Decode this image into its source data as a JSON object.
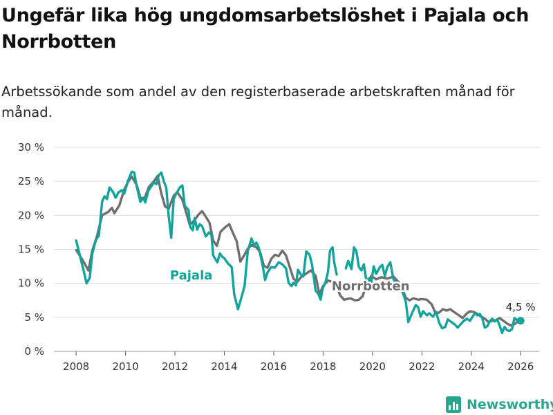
{
  "title": "Ungefär lika hög ungdomsarbetslöshet i Pajala och Norrbotten",
  "subtitle": "Arbetssökande som andel av den registerbaserade arbetskraften månad för månad.",
  "brand": {
    "name": "Newsworthy",
    "icon": "bar-chart-logo-icon"
  },
  "colors": {
    "pajala": "#12a39a",
    "norrbotten": "#6e6e6e",
    "grid": "#dcdcdc",
    "brand": "#2ca58d"
  },
  "chart_data": {
    "type": "line",
    "title": "Ungefär lika hög ungdomsarbetslöshet i Pajala och Norrbotten",
    "xlabel": "",
    "ylabel": "",
    "xlim": [
      2007.1,
      2026.75
    ],
    "ylim": [
      0,
      30
    ],
    "grid": true,
    "y_ticks": [
      0,
      5,
      10,
      15,
      20,
      25,
      30
    ],
    "y_tick_labels": [
      "0 %",
      "5 %",
      "10 %",
      "15 %",
      "20 %",
      "25 %",
      "30 %"
    ],
    "x_ticks": [
      2008,
      2010,
      2012,
      2014,
      2016,
      2018,
      2020,
      2022,
      2024,
      2026
    ],
    "x_tick_labels": [
      "2008",
      "2010",
      "2012",
      "2014",
      "2016",
      "2018",
      "2020",
      "2022",
      "2024",
      "2026"
    ],
    "end_label": "4,5 %",
    "series": [
      {
        "name": "Norrbotten",
        "label": "Norrbotten",
        "points": [
          [
            2008.0,
            14.9
          ],
          [
            2008.25,
            13.5
          ],
          [
            2008.5,
            11.9
          ],
          [
            2008.65,
            14.8
          ],
          [
            2008.85,
            17.0
          ],
          [
            2009.05,
            20.0
          ],
          [
            2009.3,
            20.5
          ],
          [
            2009.45,
            21.1
          ],
          [
            2009.55,
            20.3
          ],
          [
            2009.75,
            21.5
          ],
          [
            2009.95,
            23.8
          ],
          [
            2010.1,
            24.9
          ],
          [
            2010.25,
            25.7
          ],
          [
            2010.45,
            24.5
          ],
          [
            2010.6,
            22.6
          ],
          [
            2010.75,
            22.3
          ],
          [
            2010.95,
            24.2
          ],
          [
            2011.15,
            25.0
          ],
          [
            2011.3,
            25.8
          ],
          [
            2011.45,
            23.2
          ],
          [
            2011.6,
            21.3
          ],
          [
            2011.75,
            21.0
          ],
          [
            2011.95,
            22.9
          ],
          [
            2012.1,
            23.4
          ],
          [
            2012.3,
            22.3
          ],
          [
            2012.45,
            20.5
          ],
          [
            2012.6,
            18.6
          ],
          [
            2012.8,
            19.3
          ],
          [
            2012.95,
            20.1
          ],
          [
            2013.1,
            20.6
          ],
          [
            2013.25,
            19.8
          ],
          [
            2013.4,
            18.9
          ],
          [
            2013.55,
            16.3
          ],
          [
            2013.7,
            15.5
          ],
          [
            2013.85,
            17.6
          ],
          [
            2014.05,
            18.3
          ],
          [
            2014.2,
            18.7
          ],
          [
            2014.35,
            17.4
          ],
          [
            2014.5,
            16.2
          ],
          [
            2014.65,
            13.2
          ],
          [
            2014.8,
            14.1
          ],
          [
            2014.95,
            15.1
          ],
          [
            2015.1,
            15.6
          ],
          [
            2015.3,
            15.3
          ],
          [
            2015.45,
            14.6
          ],
          [
            2015.6,
            12.6
          ],
          [
            2015.75,
            12.3
          ],
          [
            2015.9,
            13.6
          ],
          [
            2016.05,
            14.2
          ],
          [
            2016.2,
            14.0
          ],
          [
            2016.35,
            14.8
          ],
          [
            2016.5,
            14.1
          ],
          [
            2016.65,
            12.4
          ],
          [
            2016.8,
            10.7
          ],
          [
            2016.95,
            10.2
          ],
          [
            2017.1,
            10.9
          ],
          [
            2017.3,
            11.4
          ],
          [
            2017.5,
            11.9
          ],
          [
            2017.7,
            11.1
          ],
          [
            2017.85,
            8.4
          ],
          [
            2018.0,
            9.6
          ],
          [
            2018.2,
            10.4
          ],
          [
            2018.4,
            10.2
          ],
          [
            2018.55,
            9.5
          ],
          [
            2018.7,
            8.2
          ],
          [
            2018.85,
            7.6
          ]
        ]
      },
      {
        "name": "Norrbotten",
        "label": "",
        "points": [
          [
            2019.6,
            8.1
          ],
          [
            2019.75,
            9.8
          ],
          [
            2019.95,
            11.1
          ],
          [
            2020.15,
            10.6
          ],
          [
            2020.35,
            10.9
          ],
          [
            2020.6,
            10.7
          ],
          [
            2020.85,
            11.0
          ],
          [
            2021.05,
            10.2
          ],
          [
            2021.2,
            9.2
          ],
          [
            2021.35,
            7.9
          ],
          [
            2021.5,
            7.5
          ],
          [
            2021.65,
            7.8
          ],
          [
            2021.85,
            7.6
          ],
          [
            2022.0,
            7.7
          ],
          [
            2022.2,
            7.6
          ],
          [
            2022.4,
            6.9
          ],
          [
            2022.55,
            5.6
          ],
          [
            2022.7,
            5.7
          ],
          [
            2022.85,
            6.2
          ],
          [
            2023.0,
            6.0
          ],
          [
            2023.15,
            6.2
          ],
          [
            2023.3,
            5.8
          ],
          [
            2023.5,
            5.3
          ],
          [
            2023.65,
            4.9
          ],
          [
            2023.8,
            5.5
          ],
          [
            2023.95,
            5.9
          ],
          [
            2024.1,
            5.8
          ],
          [
            2024.25,
            5.5
          ],
          [
            2024.4,
            5.1
          ],
          [
            2024.55,
            4.8
          ],
          [
            2024.7,
            4.3
          ],
          [
            2024.85,
            4.5
          ],
          [
            2025.0,
            4.6
          ],
          [
            2025.15,
            4.9
          ],
          [
            2025.3,
            4.5
          ],
          [
            2025.45,
            4.1
          ],
          [
            2025.6,
            3.8
          ],
          [
            2025.75,
            4.0
          ],
          [
            2025.9,
            4.4
          ],
          [
            2026.0,
            4.5
          ]
        ]
      },
      {
        "name": "Norrbotten",
        "label": "",
        "points": [
          [
            2018.85,
            7.6
          ],
          [
            2019.1,
            7.8
          ],
          [
            2019.3,
            7.5
          ],
          [
            2019.45,
            7.6
          ],
          [
            2019.6,
            8.1
          ]
        ]
      },
      {
        "name": "Pajala",
        "label": "Pajala",
        "points": [
          [
            2008.0,
            16.3
          ],
          [
            2008.15,
            14.1
          ],
          [
            2008.3,
            11.9
          ],
          [
            2008.42,
            10.0
          ],
          [
            2008.55,
            10.8
          ],
          [
            2008.65,
            14.3
          ],
          [
            2008.8,
            16.4
          ],
          [
            2008.92,
            17.0
          ],
          [
            2009.05,
            22.0
          ],
          [
            2009.15,
            22.8
          ],
          [
            2009.25,
            22.4
          ],
          [
            2009.35,
            24.1
          ],
          [
            2009.5,
            23.4
          ],
          [
            2009.6,
            22.6
          ],
          [
            2009.72,
            23.4
          ],
          [
            2009.85,
            23.7
          ],
          [
            2009.95,
            23.2
          ],
          [
            2010.1,
            25.1
          ],
          [
            2010.25,
            26.4
          ],
          [
            2010.35,
            26.3
          ],
          [
            2010.45,
            24.3
          ],
          [
            2010.6,
            22.0
          ],
          [
            2010.72,
            22.6
          ],
          [
            2010.8,
            21.9
          ],
          [
            2010.92,
            23.6
          ],
          [
            2011.05,
            24.3
          ],
          [
            2011.15,
            24.8
          ],
          [
            2011.25,
            24.6
          ],
          [
            2011.35,
            25.9
          ],
          [
            2011.45,
            26.3
          ],
          [
            2011.55,
            25.0
          ],
          [
            2011.65,
            24.1
          ],
          [
            2011.75,
            19.8
          ],
          [
            2011.85,
            16.7
          ],
          [
            2011.95,
            22.4
          ],
          [
            2012.05,
            23.2
          ],
          [
            2012.2,
            24.1
          ],
          [
            2012.3,
            24.4
          ],
          [
            2012.4,
            21.4
          ],
          [
            2012.55,
            20.8
          ],
          [
            2012.62,
            18.3
          ],
          [
            2012.72,
            17.8
          ],
          [
            2012.8,
            19.6
          ],
          [
            2012.9,
            17.9
          ],
          [
            2013.0,
            18.7
          ],
          [
            2013.1,
            18.4
          ],
          [
            2013.25,
            16.9
          ],
          [
            2013.38,
            17.5
          ],
          [
            2013.48,
            17.1
          ],
          [
            2013.55,
            14.1
          ],
          [
            2013.65,
            13.5
          ],
          [
            2013.72,
            13.1
          ],
          [
            2013.82,
            14.4
          ],
          [
            2013.92,
            13.9
          ],
          [
            2014.0,
            13.7
          ],
          [
            2014.15,
            12.9
          ],
          [
            2014.3,
            12.4
          ],
          [
            2014.4,
            8.4
          ],
          [
            2014.55,
            6.2
          ],
          [
            2014.7,
            8.0
          ],
          [
            2014.82,
            9.6
          ],
          [
            2014.95,
            14.7
          ],
          [
            2015.1,
            16.6
          ],
          [
            2015.2,
            15.6
          ],
          [
            2015.3,
            16.0
          ],
          [
            2015.4,
            15.2
          ],
          [
            2015.55,
            12.7
          ],
          [
            2015.65,
            10.5
          ],
          [
            2015.75,
            11.6
          ],
          [
            2015.9,
            12.4
          ],
          [
            2016.05,
            12.3
          ],
          [
            2016.2,
            13.1
          ],
          [
            2016.35,
            12.8
          ],
          [
            2016.5,
            12.2
          ],
          [
            2016.6,
            10.1
          ],
          [
            2016.72,
            9.6
          ],
          [
            2016.8,
            10.1
          ],
          [
            2016.9,
            9.7
          ],
          [
            2016.98,
            12.0
          ],
          [
            2017.1,
            11.3
          ],
          [
            2017.2,
            11.0
          ],
          [
            2017.32,
            14.7
          ],
          [
            2017.45,
            14.2
          ],
          [
            2017.55,
            12.8
          ],
          [
            2017.7,
            8.9
          ],
          [
            2017.8,
            8.5
          ],
          [
            2017.9,
            7.6
          ],
          [
            2017.98,
            9.2
          ],
          [
            2018.1,
            10.2
          ],
          [
            2018.2,
            11.7
          ],
          [
            2018.28,
            14.8
          ],
          [
            2018.38,
            15.3
          ],
          [
            2018.45,
            13.1
          ],
          [
            2018.55,
            11.3
          ]
        ]
      },
      {
        "name": "Pajala",
        "label": "",
        "points": [
          [
            2018.92,
            12.2
          ],
          [
            2019.02,
            13.3
          ],
          [
            2019.15,
            12.1
          ],
          [
            2019.25,
            15.3
          ],
          [
            2019.35,
            14.7
          ],
          [
            2019.45,
            12.4
          ],
          [
            2019.55,
            11.9
          ],
          [
            2019.65,
            12.8
          ],
          [
            2019.75,
            10.4
          ],
          [
            2019.85,
            10.7
          ],
          [
            2019.95,
            10.2
          ],
          [
            2020.05,
            12.5
          ],
          [
            2020.15,
            11.4
          ],
          [
            2020.3,
            12.4
          ],
          [
            2020.4,
            12.7
          ],
          [
            2020.5,
            11.1
          ],
          [
            2020.6,
            12.4
          ],
          [
            2020.72,
            13.1
          ],
          [
            2020.85,
            10.6
          ],
          [
            2020.95,
            10.1
          ],
          [
            2021.05,
            9.8
          ],
          [
            2021.15,
            9.3
          ],
          [
            2021.25,
            8.4
          ],
          [
            2021.35,
            7.3
          ],
          [
            2021.45,
            4.3
          ],
          [
            2021.6,
            5.6
          ],
          [
            2021.75,
            6.8
          ],
          [
            2021.85,
            6.5
          ],
          [
            2021.95,
            5.1
          ],
          [
            2022.05,
            5.9
          ],
          [
            2022.2,
            5.3
          ],
          [
            2022.3,
            5.6
          ],
          [
            2022.45,
            5.1
          ],
          [
            2022.58,
            5.8
          ],
          [
            2022.7,
            4.2
          ],
          [
            2022.82,
            3.4
          ],
          [
            2022.95,
            3.6
          ],
          [
            2023.05,
            4.7
          ],
          [
            2023.2,
            4.3
          ],
          [
            2023.35,
            3.9
          ],
          [
            2023.45,
            3.5
          ],
          [
            2023.55,
            3.9
          ],
          [
            2023.7,
            4.5
          ],
          [
            2023.82,
            4.8
          ],
          [
            2023.95,
            4.5
          ],
          [
            2024.05,
            5.1
          ],
          [
            2024.15,
            5.6
          ],
          [
            2024.25,
            5.3
          ],
          [
            2024.35,
            5.5
          ],
          [
            2024.45,
            4.8
          ],
          [
            2024.55,
            3.5
          ],
          [
            2024.65,
            3.7
          ],
          [
            2024.75,
            4.4
          ],
          [
            2024.85,
            4.8
          ],
          [
            2024.95,
            4.4
          ],
          [
            2025.05,
            4.7
          ],
          [
            2025.15,
            3.8
          ],
          [
            2025.25,
            2.7
          ],
          [
            2025.35,
            3.6
          ],
          [
            2025.45,
            3.1
          ],
          [
            2025.55,
            3.0
          ],
          [
            2025.65,
            3.3
          ],
          [
            2025.75,
            4.9
          ],
          [
            2025.85,
            4.6
          ],
          [
            2025.95,
            4.8
          ],
          [
            2026.0,
            4.5
          ]
        ]
      }
    ]
  }
}
